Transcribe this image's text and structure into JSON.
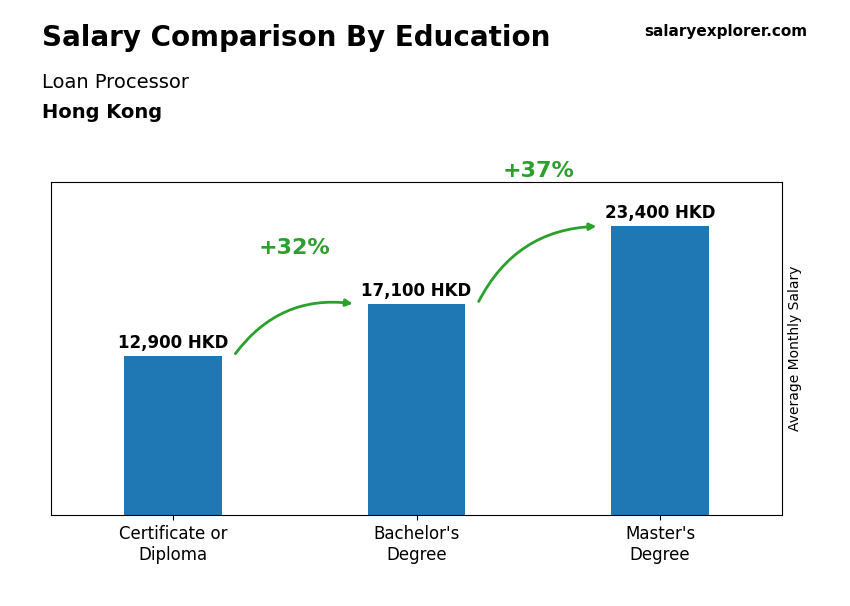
{
  "chart_data": {
    "type": "bar",
    "title": "Salary Comparison By Education",
    "subtitle": [
      "Loan Processor",
      "Hong Kong"
    ],
    "source": "salaryexplorer.com",
    "ylabel": "Average Monthly Salary",
    "categories": [
      "Certificate or\nDiploma",
      "Bachelor's\nDegree",
      "Master's\nDegree"
    ],
    "values": [
      12900,
      17100,
      23400
    ],
    "value_labels": [
      "12,900 HKD",
      "17,100 HKD",
      "23,400 HKD"
    ],
    "data_labels": true,
    "annotations": [
      "+32%",
      "+37%"
    ],
    "ylim": [
      0,
      27000
    ],
    "yticks": [],
    "tick_labels": "x",
    "grid": false
  }
}
